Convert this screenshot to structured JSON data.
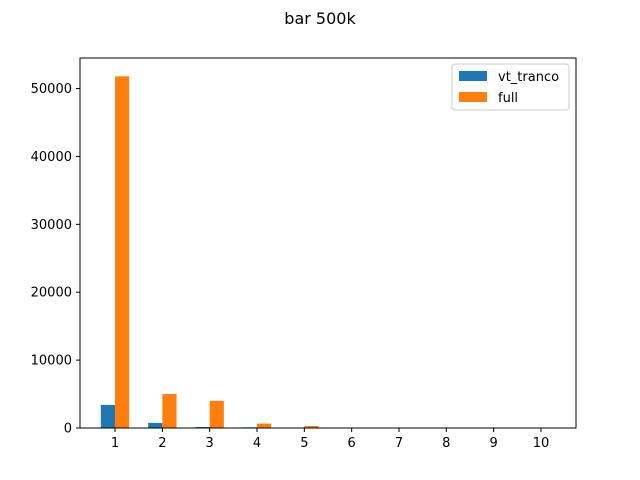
{
  "chart_data": {
    "type": "bar",
    "title": "bar 500k",
    "xlabel": "",
    "ylabel": "",
    "categories": [
      "1",
      "2",
      "3",
      "4",
      "5",
      "6",
      "7",
      "8",
      "9",
      "10"
    ],
    "x": [
      1,
      2,
      3,
      4,
      5,
      6,
      7,
      8,
      9,
      10
    ],
    "ylim": [
      0,
      54500
    ],
    "yticks": [
      0,
      10000,
      20000,
      30000,
      40000,
      50000
    ],
    "series": [
      {
        "name": "vt_tranco",
        "color": "#1f77b4",
        "values": [
          3400,
          750,
          150,
          100,
          30,
          10,
          5,
          3,
          2,
          1
        ]
      },
      {
        "name": "full",
        "color": "#ff7f0e",
        "values": [
          51800,
          5000,
          4000,
          650,
          300,
          30,
          10,
          5,
          3,
          2
        ]
      }
    ],
    "legend": {
      "position": "top-right"
    },
    "grid": false
  }
}
